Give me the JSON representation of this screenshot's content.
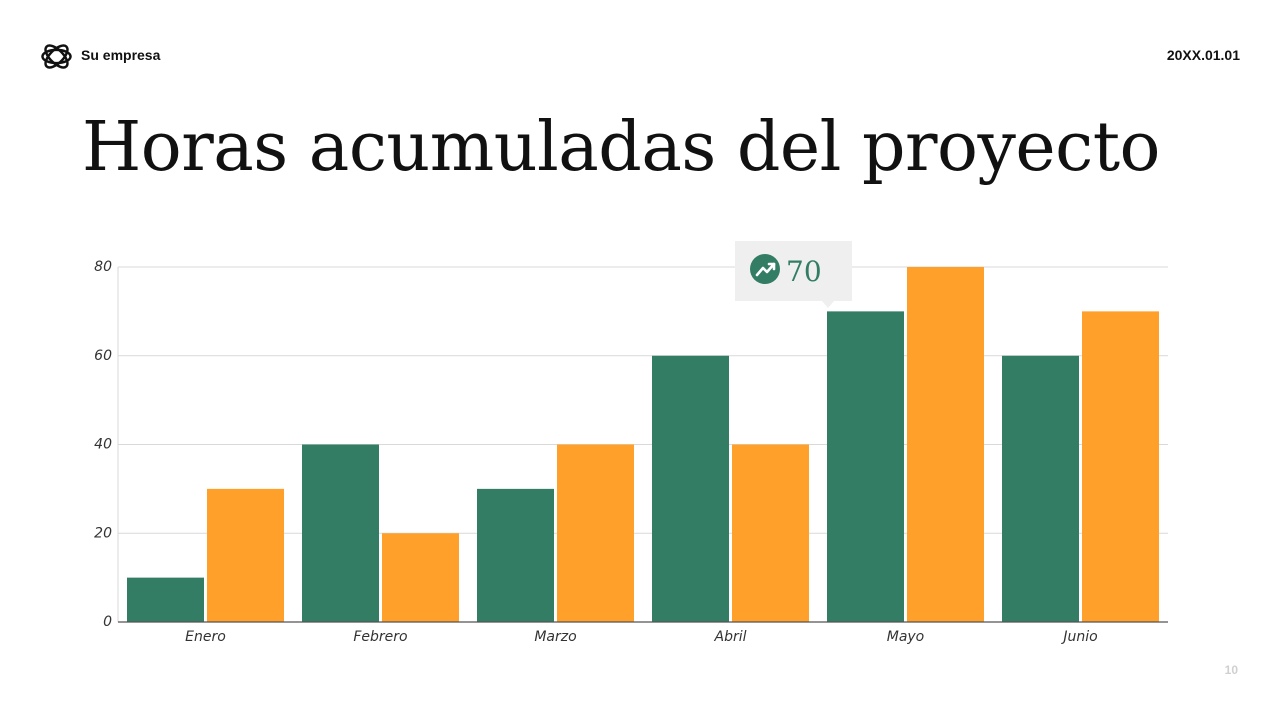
{
  "header": {
    "company": "Su empresa",
    "date": "20XX.01.01",
    "logo_icon": "interlocking-rings-icon"
  },
  "slide": {
    "title": "Horas acumuladas del proyecto",
    "page_number": "10"
  },
  "callout": {
    "icon": "trending-up-icon",
    "value": "70"
  },
  "colors": {
    "series_a": "#347D65",
    "series_b": "#FFA02A",
    "callout_bg": "#EFEFEF"
  },
  "chart_data": {
    "type": "bar",
    "title": "",
    "xlabel": "",
    "ylabel": "",
    "categories": [
      "Enero",
      "Febrero",
      "Marzo",
      "Abril",
      "Mayo",
      "Junio"
    ],
    "series": [
      {
        "values": [
          10,
          40,
          30,
          60,
          70,
          60
        ]
      },
      {
        "values": [
          30,
          20,
          40,
          40,
          80,
          70
        ]
      }
    ],
    "ylim": [
      0,
      80
    ],
    "yticks": [
      0,
      20,
      40,
      60,
      80
    ],
    "grid": true,
    "legend": "none"
  }
}
